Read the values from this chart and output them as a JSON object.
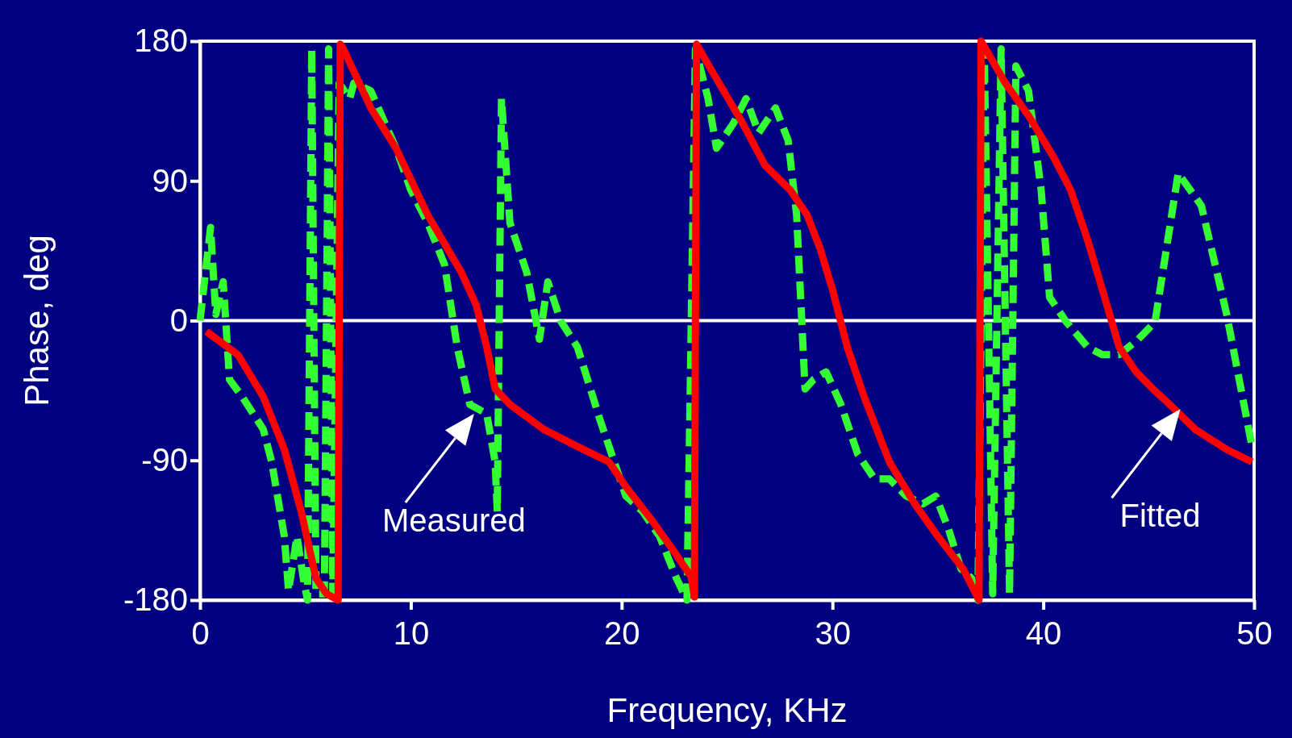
{
  "chart_data": {
    "type": "line",
    "xlabel": "Frequency, KHz",
    "ylabel": "Phase, deg",
    "xlim": [
      0,
      50
    ],
    "xticks": [
      0,
      10,
      20,
      30,
      40,
      50
    ],
    "ylim": [
      -180,
      180
    ],
    "yticks": [
      -180,
      -90,
      0,
      90,
      180
    ],
    "ref_lines": [
      {
        "axis": "y",
        "value": 0,
        "color": "#ffffff"
      }
    ],
    "annotations": [
      {
        "text": "Measured",
        "x": 13,
        "y": -60
      },
      {
        "text": "Fitted",
        "x": 46.5,
        "y": -57
      }
    ],
    "series": [
      {
        "color": "#33ff33",
        "line_style": "dashed",
        "x": [
          0,
          0.5,
          0.75,
          1.1,
          1.4,
          2.0,
          3.0,
          3.4,
          4.0,
          4.2,
          4.6,
          4.9,
          5.1,
          5.3,
          5.5,
          5.9,
          6.1,
          6.3,
          6.6,
          7.1,
          7.3,
          8.1,
          9.3,
          10.0,
          10.8,
          11.6,
          12.2,
          12.8,
          13.6,
          14.0,
          14.1,
          14.3,
          14.7,
          15.5,
          16.1,
          16.5,
          17.1,
          17.9,
          19.0,
          20.2,
          21.0,
          21.8,
          22.6,
          23.1,
          23.5,
          24.1,
          24.5,
          25.3,
          25.9,
          26.5,
          27.3,
          27.9,
          28.3,
          28.7,
          29.1,
          29.7,
          30.4,
          31.2,
          32.0,
          32.7,
          33.5,
          34.3,
          34.9,
          35.5,
          36.1,
          36.6,
          36.9,
          37.2,
          37.6,
          38.0,
          38.4,
          38.7,
          39.3,
          39.9,
          40.3,
          41.1,
          42.1,
          42.8,
          43.6,
          44.5,
          45.3,
          46.4,
          47.5,
          48.7,
          49.9
        ],
        "values": [
          0,
          60,
          4,
          25,
          -38,
          -49,
          -70,
          -91,
          -139,
          -174,
          -139,
          -166,
          -180,
          175,
          -176,
          -176,
          175,
          -176,
          153,
          143,
          153,
          148,
          111,
          84,
          63,
          36,
          -17,
          -54,
          -60,
          -91,
          -123,
          143,
          63,
          31,
          -12,
          25,
          0,
          -17,
          -65,
          -113,
          -123,
          -139,
          -166,
          -180,
          175,
          143,
          111,
          127,
          143,
          121,
          137,
          116,
          68,
          -44,
          -38,
          -33,
          -54,
          -86,
          -102,
          -102,
          -113,
          -118,
          -113,
          -134,
          -160,
          -166,
          -180,
          175,
          -176,
          175,
          -176,
          164,
          148,
          84,
          15,
          -1,
          -17,
          -22,
          -22,
          -12,
          -1,
          95,
          74,
          4,
          -81
        ]
      },
      {
        "color": "#ff0000",
        "line_style": "solid",
        "x": [
          0.3,
          1.8,
          3.0,
          4.0,
          4.8,
          5.5,
          6.0,
          6.55,
          6.65,
          6.8,
          8.1,
          9.3,
          10.8,
          12.4,
          13.1,
          13.6,
          14.0,
          14.7,
          16.3,
          17.9,
          19.4,
          20.2,
          21.4,
          22.5,
          23.3,
          23.45,
          23.55,
          24.1,
          25.7,
          26.8,
          28.0,
          28.8,
          29.4,
          30.0,
          30.7,
          31.5,
          32.7,
          33.9,
          35.0,
          36.2,
          36.8,
          36.95,
          37.05,
          38.2,
          39.3,
          40.5,
          41.3,
          42.1,
          42.8,
          43.6,
          44.4,
          45.2,
          46.0,
          47.2,
          48.7,
          49.9
        ],
        "values": [
          -7,
          -22,
          -49,
          -83,
          -123,
          -166,
          -176,
          -180,
          178,
          175,
          137,
          111,
          68,
          31,
          10,
          -17,
          -44,
          -54,
          -70,
          -81,
          -91,
          -107,
          -128,
          -149,
          -165,
          -178,
          178,
          165,
          128,
          100,
          84,
          68,
          47,
          20,
          -17,
          -49,
          -91,
          -118,
          -139,
          -160,
          -176,
          -180,
          180,
          153,
          132,
          105,
          84,
          52,
          20,
          -17,
          -33,
          -44,
          -54,
          -70,
          -83,
          -91
        ]
      }
    ]
  }
}
